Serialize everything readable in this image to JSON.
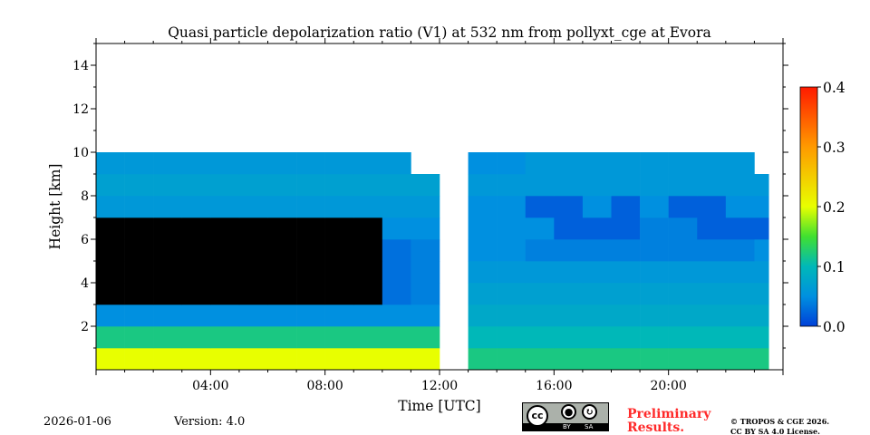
{
  "chart_data": {
    "type": "heatmap",
    "title": "Quasi particle depolarization ratio (V1) at 532 nm from pollyxt_cge at Evora",
    "xlabel": "Time [UTC]",
    "ylabel": "Height [km]",
    "xlim_hours": [
      0,
      24
    ],
    "ylim_km": [
      0,
      15
    ],
    "x_ticks": [
      {
        "h": 4,
        "label": "04:00"
      },
      {
        "h": 8,
        "label": "08:00"
      },
      {
        "h": 12,
        "label": "12:00"
      },
      {
        "h": 16,
        "label": "16:00"
      },
      {
        "h": 20,
        "label": "20:00"
      }
    ],
    "y_ticks": [
      {
        "v": 2,
        "label": "2"
      },
      {
        "v": 4,
        "label": "4"
      },
      {
        "v": 6,
        "label": "6"
      },
      {
        "v": 8,
        "label": "8"
      },
      {
        "v": 10,
        "label": "10"
      },
      {
        "v": 12,
        "label": "12"
      },
      {
        "v": 14,
        "label": "14"
      }
    ],
    "colorbar": {
      "min": 0.0,
      "max": 0.4,
      "ticks": [
        {
          "v": 0.0,
          "label": "0.0"
        },
        {
          "v": 0.1,
          "label": "0.1"
        },
        {
          "v": 0.2,
          "label": "0.2"
        },
        {
          "v": 0.3,
          "label": "0.3"
        },
        {
          "v": 0.4,
          "label": "0.4"
        }
      ],
      "under_color": "#000000"
    },
    "colormap": [
      [
        0.0,
        "#0040d8"
      ],
      [
        0.05,
        "#0090e0"
      ],
      [
        0.1,
        "#00b8b8"
      ],
      [
        0.15,
        "#40e030"
      ],
      [
        0.2,
        "#e8ff00"
      ],
      [
        0.3,
        "#ff9a00"
      ],
      [
        0.4,
        "#ff1a00"
      ]
    ],
    "bin_hours": 1,
    "bin_km": 1,
    "data_end_hour": 23.5,
    "grid_rows_bottom_up": [
      [
        0.2,
        0.2,
        0.2,
        0.2,
        0.2,
        0.2,
        0.2,
        0.2,
        0.2,
        0.2,
        0.2,
        0.2,
        null,
        0.12,
        0.12,
        0.12,
        0.12,
        0.12,
        0.12,
        0.12,
        0.12,
        0.12,
        0.12,
        0.12
      ],
      [
        0.12,
        0.12,
        0.12,
        0.12,
        0.12,
        0.12,
        0.12,
        0.12,
        0.12,
        0.12,
        0.12,
        0.12,
        null,
        0.1,
        0.1,
        0.1,
        0.1,
        0.1,
        0.1,
        0.1,
        0.1,
        0.1,
        0.1,
        0.1
      ],
      [
        0.05,
        0.05,
        0.05,
        0.05,
        0.05,
        0.05,
        0.05,
        0.05,
        0.05,
        0.05,
        0.05,
        0.05,
        null,
        0.08,
        0.08,
        0.08,
        0.08,
        0.08,
        0.08,
        0.08,
        0.08,
        0.08,
        0.08,
        0.08
      ],
      [
        -0.01,
        -0.01,
        -0.01,
        -0.01,
        -0.01,
        -0.01,
        -0.01,
        -0.01,
        -0.01,
        -0.01,
        0.03,
        0.04,
        null,
        0.07,
        0.07,
        0.07,
        0.07,
        0.07,
        0.07,
        0.07,
        0.07,
        0.07,
        0.07,
        0.07
      ],
      [
        -0.01,
        -0.01,
        -0.01,
        -0.01,
        -0.01,
        -0.01,
        -0.01,
        -0.01,
        -0.01,
        -0.01,
        0.03,
        0.04,
        null,
        0.06,
        0.06,
        0.06,
        0.06,
        0.06,
        0.06,
        0.06,
        0.06,
        0.06,
        0.06,
        0.06
      ],
      [
        -0.01,
        -0.01,
        -0.01,
        -0.01,
        -0.01,
        -0.01,
        -0.01,
        -0.01,
        -0.01,
        -0.01,
        0.03,
        0.04,
        null,
        0.05,
        0.05,
        0.04,
        0.04,
        0.04,
        0.04,
        0.04,
        0.04,
        0.04,
        0.04,
        0.05
      ],
      [
        -0.01,
        -0.01,
        -0.01,
        -0.01,
        -0.01,
        -0.01,
        -0.01,
        -0.01,
        -0.01,
        -0.01,
        0.05,
        0.05,
        null,
        0.05,
        0.05,
        0.05,
        0.02,
        0.02,
        0.02,
        0.04,
        0.04,
        0.02,
        0.02,
        0.02
      ],
      [
        0.06,
        0.06,
        0.06,
        0.06,
        0.06,
        0.06,
        0.06,
        0.06,
        0.06,
        0.06,
        0.06,
        0.06,
        null,
        0.05,
        0.05,
        0.02,
        0.02,
        0.05,
        0.02,
        0.05,
        0.02,
        0.02,
        0.05,
        0.05
      ],
      [
        0.07,
        0.07,
        0.07,
        0.07,
        0.07,
        0.07,
        0.07,
        0.07,
        0.07,
        0.07,
        0.07,
        0.07,
        null,
        0.06,
        0.06,
        0.06,
        0.06,
        0.06,
        0.06,
        0.06,
        0.06,
        0.06,
        0.06,
        0.06
      ],
      [
        0.06,
        0.06,
        0.06,
        0.06,
        0.06,
        0.06,
        0.06,
        0.06,
        0.06,
        0.06,
        0.06,
        null,
        null,
        0.05,
        0.05,
        0.06,
        0.06,
        0.06,
        0.06,
        0.06,
        0.06,
        0.06,
        0.06,
        null
      ],
      [
        null,
        null,
        null,
        null,
        null,
        null,
        null,
        null,
        null,
        null,
        null,
        null,
        null,
        null,
        null,
        null,
        null,
        null,
        null,
        null,
        null,
        null,
        null,
        null
      ],
      [
        null,
        null,
        null,
        null,
        null,
        null,
        null,
        null,
        null,
        null,
        null,
        null,
        null,
        null,
        null,
        null,
        null,
        null,
        null,
        null,
        null,
        null,
        null,
        null
      ],
      [
        null,
        null,
        null,
        null,
        null,
        null,
        null,
        null,
        null,
        null,
        null,
        null,
        null,
        null,
        null,
        null,
        null,
        null,
        null,
        null,
        null,
        null,
        null,
        null
      ],
      [
        null,
        null,
        null,
        null,
        null,
        null,
        null,
        null,
        null,
        null,
        null,
        null,
        null,
        null,
        null,
        null,
        null,
        null,
        null,
        null,
        null,
        null,
        null,
        null
      ],
      [
        null,
        null,
        null,
        null,
        null,
        null,
        null,
        null,
        null,
        null,
        null,
        null,
        null,
        null,
        null,
        null,
        null,
        null,
        null,
        null,
        null,
        null,
        null,
        null
      ]
    ]
  },
  "footer": {
    "date": "2026-01-06",
    "version": "Version: 4.0",
    "license_badge": {
      "cc": "cc",
      "by": "BY",
      "sa": "SA"
    },
    "preliminary_line1": "Preliminary",
    "preliminary_line2": "Results.",
    "copyright_line1": "© TROPOS & CGE 2026.",
    "copyright_line2": "CC BY SA 4.0 License."
  }
}
